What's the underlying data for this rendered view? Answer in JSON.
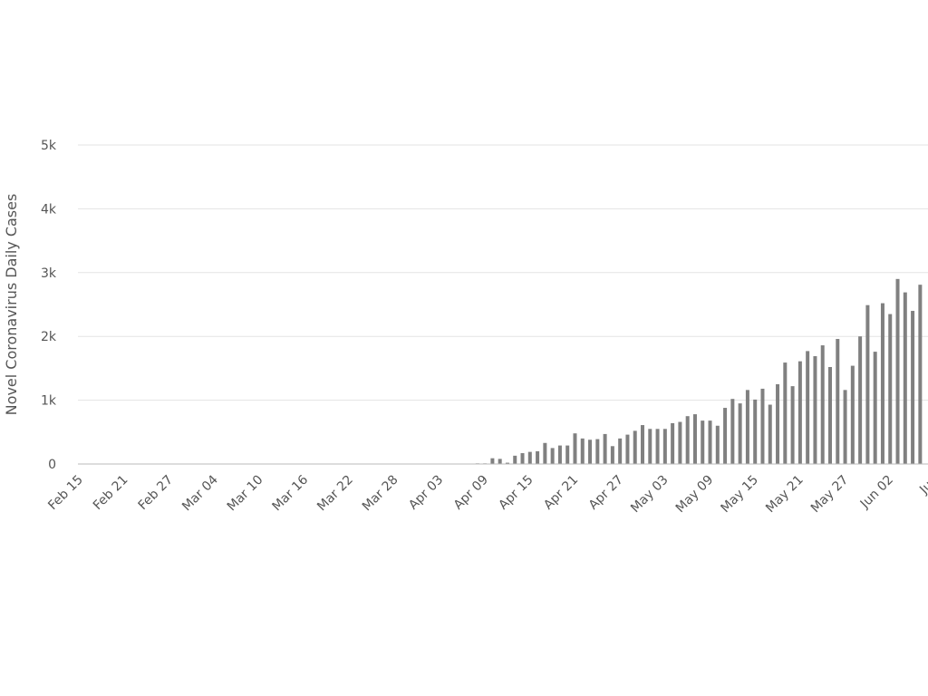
{
  "chart_data": {
    "type": "bar",
    "y_label": "Novel Coronavirus Daily Cases",
    "color": "#808080",
    "grid": true,
    "ylim": [
      0,
      5000
    ],
    "yticks": [
      0,
      {
        "value": 1000,
        "label": "1k"
      },
      {
        "value": 2000,
        "label": "2k"
      },
      {
        "value": 3000,
        "label": "3k"
      },
      {
        "value": 4000,
        "label": "4k"
      },
      {
        "value": 5000,
        "label": "5k"
      }
    ],
    "categories": [
      "Feb 15",
      null,
      null,
      null,
      null,
      null,
      "Feb 21",
      null,
      null,
      null,
      null,
      null,
      "Feb 27",
      null,
      null,
      null,
      null,
      null,
      "Mar 04",
      null,
      null,
      null,
      null,
      null,
      "Mar 10",
      null,
      null,
      null,
      null,
      null,
      "Mar 16",
      null,
      null,
      null,
      null,
      null,
      "Mar 22",
      null,
      null,
      null,
      null,
      null,
      "Mar 28",
      null,
      null,
      null,
      null,
      null,
      "Apr 03",
      null,
      null,
      null,
      null,
      null,
      "Apr 09",
      null,
      null,
      null,
      null,
      null,
      "Apr 15",
      null,
      null,
      null,
      null,
      null,
      "Apr 21",
      null,
      null,
      null,
      null,
      null,
      "Apr 27",
      null,
      null,
      null,
      null,
      null,
      "May 03",
      null,
      null,
      null,
      null,
      null,
      "May 09",
      null,
      null,
      null,
      null,
      null,
      "May 15",
      null,
      null,
      null,
      null,
      null,
      "May 21",
      null,
      null,
      null,
      null,
      null,
      "May 27",
      null,
      null,
      null,
      null,
      null,
      "Jun 02",
      null,
      null,
      null,
      null,
      null,
      "Jun"
    ],
    "values": [
      0,
      0,
      0,
      0,
      0,
      0,
      0,
      0,
      0,
      0,
      0,
      0,
      0,
      0,
      0,
      0,
      0,
      0,
      0,
      0,
      0,
      0,
      0,
      0,
      0,
      0,
      0,
      0,
      0,
      0,
      0,
      0,
      0,
      0,
      0,
      0,
      0,
      0,
      0,
      0,
      0,
      0,
      0,
      0,
      0,
      0,
      0,
      0,
      0,
      0,
      0,
      0,
      0,
      10,
      10,
      90,
      80,
      20,
      130,
      170,
      190,
      200,
      330,
      250,
      290,
      290,
      480,
      400,
      380,
      390,
      470,
      280,
      400,
      460,
      520,
      610,
      550,
      550,
      550,
      640,
      660,
      750,
      780,
      680,
      680,
      600,
      880,
      1020,
      950,
      1160,
      1010,
      1180,
      930,
      1250,
      1590,
      1220,
      1610,
      1770,
      1690,
      1860,
      1520,
      1960,
      1160,
      1540,
      2000,
      2490,
      1760,
      2520,
      2350,
      2900,
      2690,
      2400,
      2810,
      null,
      null
    ]
  }
}
